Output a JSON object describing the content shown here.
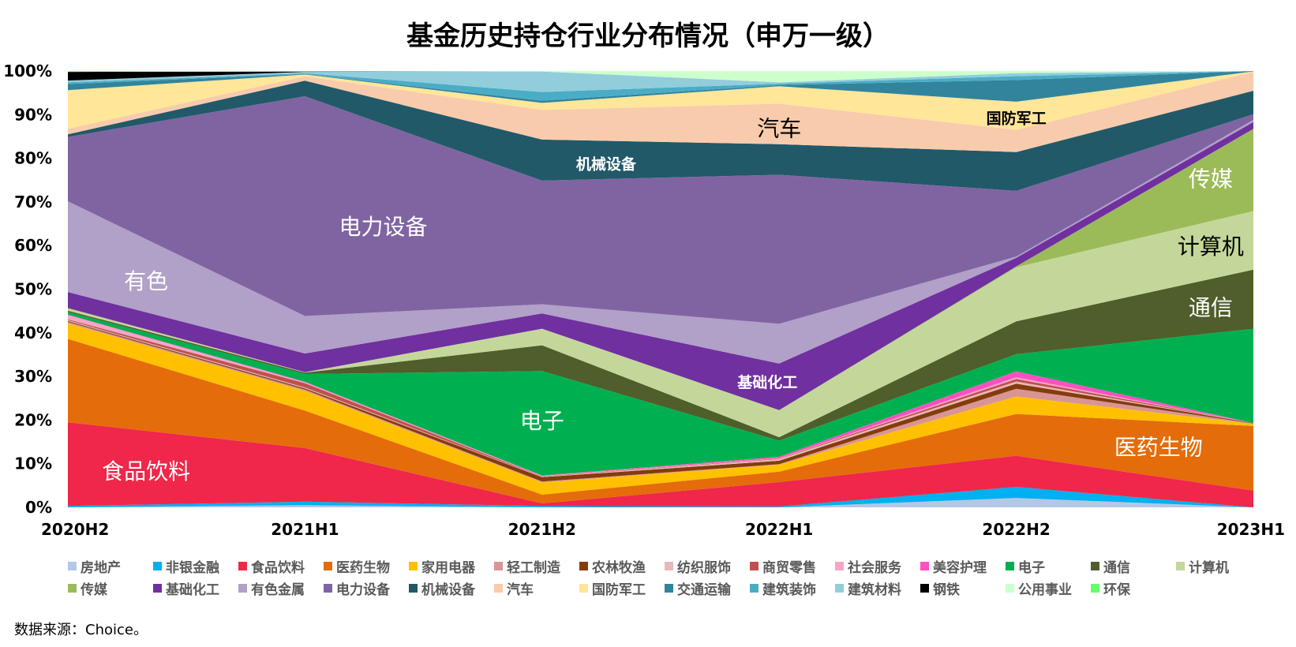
{
  "chart_data": {
    "type": "area",
    "stacking": "percent",
    "title": "基金历史持仓行业分布情况（申万一级）",
    "x": [
      "2020H2",
      "2021H1",
      "2021H2",
      "2022H1",
      "2022H2",
      "2023H1"
    ],
    "yticks": [
      "0%",
      "10%",
      "20%",
      "30%",
      "40%",
      "50%",
      "60%",
      "70%",
      "80%",
      "90%",
      "100%"
    ],
    "ylim": [
      0,
      100
    ],
    "legend_position": "bottom",
    "series": [
      {
        "name": "房地产",
        "color": "#b4c7e7",
        "values": [
          0.0,
          0.5,
          0.0,
          0.0,
          2.2,
          0.0
        ]
      },
      {
        "name": "非银金融",
        "color": "#00b0f0",
        "values": [
          0.3,
          0.8,
          0.3,
          0.2,
          2.6,
          0.0
        ]
      },
      {
        "name": "食品饮料",
        "color": "#f0264a",
        "values": [
          19.3,
          12.3,
          0.6,
          5.6,
          7.3,
          3.9
        ]
      },
      {
        "name": "医药生物",
        "color": "#e46c0a",
        "values": [
          19.2,
          8.6,
          2.0,
          2.4,
          9.8,
          15.1
        ]
      },
      {
        "name": "家用电器",
        "color": "#ffc000",
        "values": [
          3.6,
          4.5,
          2.8,
          1.6,
          4.1,
          0.5
        ]
      },
      {
        "name": "轻工制造",
        "color": "#d99594",
        "values": [
          0.3,
          0.3,
          0.2,
          0.1,
          1.8,
          0.1
        ]
      },
      {
        "name": "农林牧渔",
        "color": "#843c0c",
        "values": [
          0.2,
          0.3,
          1.0,
          0.8,
          1.2,
          0.1
        ]
      },
      {
        "name": "纺织服饰",
        "color": "#e6b9b8",
        "values": [
          0.2,
          0.2,
          0.1,
          0.4,
          0.5,
          0.0
        ]
      },
      {
        "name": "商贸零售",
        "color": "#c0504d",
        "values": [
          0.2,
          1.0,
          0.1,
          0.1,
          0.6,
          0.0
        ]
      },
      {
        "name": "社会服务",
        "color": "#f4a6c9",
        "values": [
          1.0,
          0.2,
          0.1,
          0.1,
          0.4,
          0.0
        ]
      },
      {
        "name": "美容护理",
        "color": "#ff4fc1",
        "values": [
          0.1,
          0.1,
          0.1,
          0.3,
          1.4,
          0.0
        ]
      },
      {
        "name": "电子",
        "color": "#00b050",
        "values": [
          0.6,
          1.8,
          23.9,
          3.7,
          4.0,
          22.0
        ]
      },
      {
        "name": "通信",
        "color": "#4f5e2a",
        "values": [
          0.3,
          0.3,
          5.9,
          0.8,
          7.7,
          13.8
        ]
      },
      {
        "name": "计算机",
        "color": "#c4d79b",
        "values": [
          0.5,
          0.1,
          3.8,
          6.2,
          12.7,
          13.7
        ]
      },
      {
        "name": "传媒",
        "color": "#9bbb59",
        "values": [
          0.1,
          0.0,
          0.0,
          0.0,
          0.2,
          19.2
        ]
      },
      {
        "name": "基础化工",
        "color": "#7030a0",
        "values": [
          3.7,
          4.3,
          3.5,
          10.7,
          2.0,
          1.6
        ]
      },
      {
        "name": "有色金属",
        "color": "#b1a0c7",
        "values": [
          20.9,
          8.6,
          2.1,
          9.1,
          0.3,
          0.5
        ]
      },
      {
        "name": "电力设备",
        "color": "#8064a2",
        "values": [
          14.8,
          50.4,
          28.3,
          34.2,
          15.4,
          1.3
        ]
      },
      {
        "name": "机械设备",
        "color": "#215968",
        "values": [
          0.6,
          3.6,
          9.4,
          7.0,
          9.1,
          5.5
        ]
      },
      {
        "name": "汽车",
        "color": "#f8cbad",
        "values": [
          1.3,
          1.0,
          6.8,
          9.3,
          5.2,
          4.4
        ]
      },
      {
        "name": "国防军工",
        "color": "#ffe699",
        "values": [
          8.9,
          0.4,
          1.6,
          4.0,
          6.6,
          0.1
        ]
      },
      {
        "name": "交通运输",
        "color": "#31849b",
        "values": [
          1.4,
          0.1,
          0.5,
          0.3,
          5.1,
          0.1
        ]
      },
      {
        "name": "建筑装饰",
        "color": "#4bacc6",
        "values": [
          0.4,
          0.2,
          2.0,
          0.3,
          0.9,
          0.0
        ]
      },
      {
        "name": "建筑材料",
        "color": "#92cddc",
        "values": [
          0.4,
          0.3,
          4.7,
          0.3,
          0.7,
          0.0
        ]
      },
      {
        "name": "钢铁",
        "color": "#000000",
        "values": [
          2.0,
          0.1,
          0.0,
          0.0,
          0.0,
          0.0
        ]
      },
      {
        "name": "公用事业",
        "color": "#ccffcc",
        "values": [
          0.1,
          0.1,
          0.1,
          2.6,
          0.5,
          0.0
        ]
      },
      {
        "name": "环保",
        "color": "#66ff66",
        "values": [
          0.1,
          0.0,
          0.0,
          0.0,
          0.0,
          0.0
        ]
      }
    ],
    "annotations": [
      {
        "text": "食品饮料",
        "color": "#ffffff",
        "x_index": 0.33,
        "y": 8.0,
        "size": "large"
      },
      {
        "text": "有色",
        "color": "#ffffff",
        "x_index": 0.33,
        "y": 51.5,
        "size": "large"
      },
      {
        "text": "电力设备",
        "color": "#ffffff",
        "x_index": 1.33,
        "y": 64.0,
        "size": "large"
      },
      {
        "text": "电子",
        "color": "#ffffff",
        "x_index": 2.0,
        "y": 19.5,
        "size": "large"
      },
      {
        "text": "机械设备",
        "color": "#ffffff",
        "x_index": 2.27,
        "y": 78.5,
        "size": "small"
      },
      {
        "text": "汽车",
        "color": "#000000",
        "x_index": 3.0,
        "y": 86.5,
        "size": "large"
      },
      {
        "text": "基础化工",
        "color": "#ffffff",
        "x_index": 2.95,
        "y": 28.5,
        "size": "small"
      },
      {
        "text": "国防军工",
        "color": "#000000",
        "x_index": 4.0,
        "y": 89.0,
        "size": "small"
      },
      {
        "text": "传媒",
        "color": "#ffffff",
        "x_index": 4.82,
        "y": 75.0,
        "size": "large"
      },
      {
        "text": "计算机",
        "color": "#000000",
        "x_index": 4.82,
        "y": 59.5,
        "size": "large"
      },
      {
        "text": "通信",
        "color": "#ffffff",
        "x_index": 4.82,
        "y": 45.5,
        "size": "large"
      },
      {
        "text": "医药生物",
        "color": "#ffffff",
        "x_index": 4.6,
        "y": 13.5,
        "size": "large"
      }
    ]
  },
  "source_note": "数据来源：Choice。"
}
